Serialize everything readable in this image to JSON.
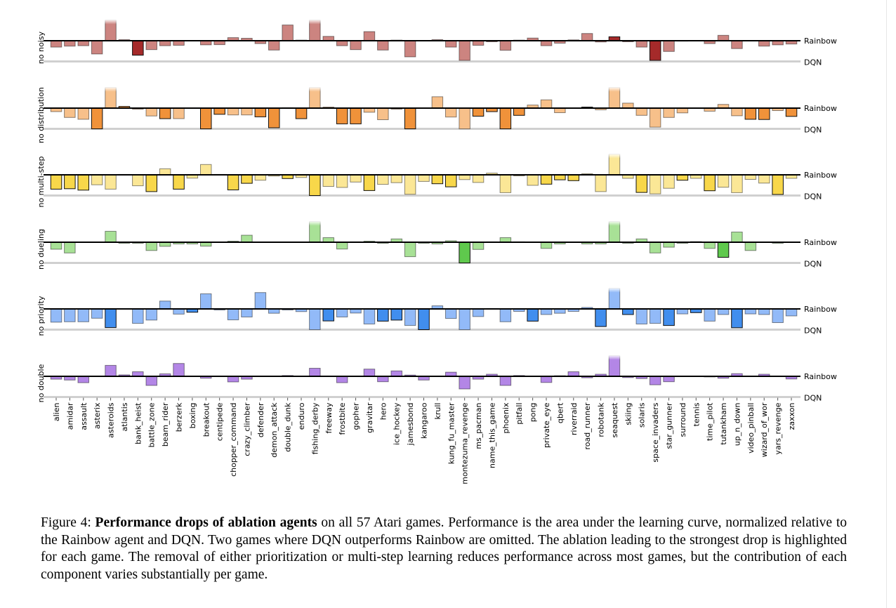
{
  "chart_data": {
    "type": "bar",
    "title": "Performance drops of ablation agents",
    "reference_labels": {
      "top": "Rainbow",
      "bottom": "DQN"
    },
    "value_meaning": "normalized area under learning curve relative to Rainbow (0) and DQN (-1); values clipped at +1",
    "ylim": [
      -1,
      1
    ],
    "categories": [
      "alien",
      "amidar",
      "assault",
      "asterix",
      "asteroids",
      "atlantis",
      "bank_heist",
      "battle_zone",
      "beam_rider",
      "berzerk",
      "boxing",
      "breakout",
      "centipede",
      "chopper_command",
      "crazy_climber",
      "defender",
      "demon_attack",
      "double_dunk",
      "enduro",
      "fishing_derby",
      "freeway",
      "frostbite",
      "gopher",
      "gravitar",
      "hero",
      "ice_hockey",
      "jamesbond",
      "kangaroo",
      "krull",
      "kung_fu_master",
      "montezuma_revenge",
      "ms_pacman",
      "name_this_game",
      "phoenix",
      "pitfall",
      "pong",
      "private_eye",
      "qbert",
      "riverraid",
      "road_runner",
      "robotank",
      "seaquest",
      "skiing",
      "solaris",
      "space_invaders",
      "star_gunner",
      "surround",
      "tennis",
      "time_pilot",
      "tutankham",
      "up_n_down",
      "video_pinball",
      "wizard_of_wor",
      "yars_revenge",
      "zaxxon"
    ],
    "series": [
      {
        "key": "noisy",
        "name": "no noisy",
        "light": "#cc8480",
        "dark": "#a52a2a",
        "values": [
          -0.31,
          -0.26,
          -0.24,
          -0.64,
          1.0,
          0.05,
          -0.7,
          -0.43,
          -0.24,
          -0.22,
          0,
          -0.2,
          -0.19,
          0.15,
          0.12,
          -0.14,
          -0.45,
          0.76,
          0.03,
          1.0,
          0.21,
          -0.24,
          -0.43,
          0.44,
          -0.45,
          0.03,
          -0.78,
          0,
          0.05,
          -0.31,
          -0.95,
          -0.22,
          -0.05,
          -0.46,
          0.03,
          0.13,
          -0.24,
          -0.12,
          0.04,
          0.35,
          -0.06,
          0.19,
          -0.05,
          -0.31,
          -0.95,
          -0.52,
          -0.02,
          0,
          -0.14,
          0.26,
          -0.38,
          0,
          -0.26,
          -0.2,
          -0.16
        ]
      },
      {
        "key": "distribution",
        "name": "no distribution",
        "light": "#f7c08a",
        "dark": "#f0923a",
        "values": [
          -0.17,
          -0.45,
          -0.54,
          -1.0,
          1.0,
          0.08,
          -0.05,
          -0.38,
          -0.51,
          -0.51,
          0,
          -1.0,
          -0.3,
          -0.33,
          -0.33,
          -0.42,
          -0.95,
          0.02,
          -0.51,
          1.0,
          0.05,
          -0.76,
          -0.76,
          -0.2,
          -0.56,
          -0.05,
          -1.0,
          0,
          0.55,
          -0.43,
          -1.0,
          -0.39,
          -0.17,
          -1.0,
          -0.35,
          0.15,
          0.4,
          -0.22,
          0,
          0.05,
          -0.08,
          1.0,
          0.24,
          -0.35,
          -0.92,
          -0.45,
          -0.23,
          0,
          -0.15,
          0.18,
          -0.37,
          -0.54,
          -0.55,
          -0.12,
          -0.4
        ]
      },
      {
        "key": "multistep",
        "name": "no multi-step",
        "light": "#fbe796",
        "dark": "#f8d74a",
        "values": [
          -0.69,
          -0.67,
          -0.74,
          -0.48,
          -0.69,
          0.02,
          -0.53,
          -0.81,
          0.29,
          -0.69,
          -0.16,
          0.5,
          0.02,
          -0.73,
          -0.41,
          -0.26,
          -0.06,
          -0.18,
          -0.13,
          -1.0,
          -0.56,
          -0.61,
          -0.35,
          -0.76,
          -0.46,
          -0.38,
          -0.94,
          -0.32,
          -0.43,
          -0.58,
          -0.23,
          -0.37,
          0.08,
          -0.86,
          -0.05,
          -0.51,
          -0.45,
          -0.24,
          -0.28,
          0.05,
          -0.81,
          1.0,
          -0.17,
          -0.85,
          -0.92,
          -0.65,
          -0.26,
          -0.17,
          -0.77,
          -0.6,
          -0.86,
          -0.22,
          -0.4,
          -0.95,
          -0.17
        ]
      },
      {
        "key": "dueling",
        "name": "no dueling",
        "light": "#a8e196",
        "dark": "#5fc94d",
        "values": [
          -0.34,
          -0.52,
          0,
          0,
          0.53,
          -0.05,
          -0.05,
          -0.4,
          -0.2,
          -0.08,
          -0.08,
          -0.19,
          0,
          0.05,
          0.34,
          0,
          0,
          0,
          0,
          1.0,
          0.22,
          -0.33,
          0.02,
          0.05,
          -0.05,
          0.16,
          -0.7,
          -0.05,
          -0.08,
          0.07,
          -1.0,
          -0.35,
          0.02,
          0.22,
          0.02,
          0,
          -0.3,
          -0.08,
          0,
          -0.08,
          -0.08,
          1.0,
          -0.05,
          0.16,
          -0.52,
          -0.24,
          -0.05,
          0.03,
          -0.3,
          -0.73,
          0.49,
          -0.4,
          0,
          -0.05,
          0
        ]
      },
      {
        "key": "priority",
        "name": "no priority",
        "light": "#92baf8",
        "dark": "#418eee",
        "values": [
          -0.64,
          -0.62,
          -0.62,
          -0.45,
          -0.9,
          0,
          -0.7,
          -0.54,
          0.38,
          -0.25,
          -0.16,
          0.73,
          -0.05,
          -0.53,
          -0.39,
          0.79,
          -0.21,
          -0.05,
          -0.13,
          -1.0,
          -0.58,
          -0.39,
          -0.2,
          -0.73,
          -0.59,
          -0.54,
          -0.8,
          -1.0,
          0.15,
          -0.46,
          -1.0,
          -0.37,
          0.02,
          -0.62,
          -0.12,
          -0.59,
          -0.27,
          -0.21,
          -0.12,
          0.07,
          -0.85,
          1.0,
          -0.27,
          -0.73,
          -0.7,
          -0.8,
          -0.24,
          -0.18,
          -0.59,
          -0.27,
          -0.91,
          -0.24,
          -0.27,
          -0.66,
          -0.34
        ]
      },
      {
        "key": "double",
        "name": "no double",
        "light": "#b386e6",
        "dark": "#b386e6",
        "values": [
          -0.14,
          -0.18,
          -0.31,
          0,
          0.53,
          0.07,
          0.22,
          -0.44,
          0.12,
          0.62,
          0,
          -0.09,
          0,
          -0.27,
          -0.14,
          0,
          0,
          0.04,
          0,
          0.39,
          0,
          -0.31,
          0,
          0.35,
          -0.26,
          0.26,
          0.06,
          -0.18,
          0,
          0.2,
          -0.61,
          -0.14,
          0.1,
          -0.44,
          0.04,
          0,
          -0.3,
          0.03,
          0.22,
          -0.07,
          0.1,
          1.0,
          -0.06,
          -0.11,
          -0.41,
          -0.26,
          0,
          0,
          -0.03,
          -0.09,
          0.13,
          0,
          0.1,
          0,
          -0.13
        ]
      }
    ],
    "highlighted_ablation": [
      "multistep",
      "multistep",
      "multistep",
      "distribution",
      "priority",
      "distribution",
      "noisy",
      "multistep",
      "distribution",
      "multistep",
      "priority",
      "distribution",
      "distribution",
      "multistep",
      "multistep",
      "distribution",
      "distribution",
      "multistep",
      "distribution",
      "multistep",
      "priority",
      "distribution",
      "distribution",
      "multistep",
      "priority",
      "priority",
      "distribution",
      "priority",
      "multistep",
      "multistep",
      "dueling",
      "distribution",
      "distribution",
      "distribution",
      "distribution",
      "priority",
      "multistep",
      "multistep",
      "multistep",
      "distribution",
      "priority",
      "noisy",
      "priority",
      "multistep",
      "noisy",
      "priority",
      "multistep",
      "priority",
      "multistep",
      "dueling",
      "priority",
      "distribution",
      "distribution",
      "multistep",
      "distribution"
    ]
  },
  "caption": {
    "prefix": "Figure 4: ",
    "bold": "Performance drops of ablation agents",
    "text": " on all 57 Atari games. Performance is the area under the learning curve, normalized relative to the Rainbow agent and DQN. Two games where DQN outperforms Rainbow are omitted. The ablation leading to the strongest drop is highlighted for each game. The removal of either prioritization or multi-step learning reduces performance across most games, but the contribution of each component varies substantially per game."
  }
}
